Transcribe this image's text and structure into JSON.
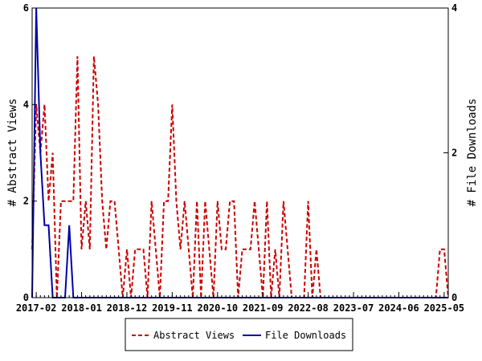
{
  "chart_data": {
    "type": "line",
    "xlabel": "",
    "ylabel_left": "# Abstract Views",
    "ylabel_right": "# File Downloads",
    "x_ticks": [
      "2017-02",
      "2018-01",
      "2018-12",
      "2019-11",
      "2020-10",
      "2021-09",
      "2022-08",
      "2023-07",
      "2024-06",
      "2025-05"
    ],
    "y_left_ticks": [
      "0",
      "2",
      "4",
      "6"
    ],
    "y_right_ticks": [
      "0",
      "2",
      "4"
    ],
    "ylim_left": [
      0,
      6
    ],
    "ylim_right": [
      0,
      4
    ],
    "xlim_months": [
      "2017-01",
      "2025-06"
    ],
    "legend_placement": "bottom",
    "series": [
      {
        "name": "Abstract Views",
        "axis": "left",
        "color": "#cc0000",
        "style": "dashed",
        "x": [
          "2017-01",
          "2017-02",
          "2017-03",
          "2017-04",
          "2017-05",
          "2017-06",
          "2017-07",
          "2017-08",
          "2017-09",
          "2017-10",
          "2017-11",
          "2017-12",
          "2018-01",
          "2018-02",
          "2018-03",
          "2018-04",
          "2018-05",
          "2018-06",
          "2018-07",
          "2018-08",
          "2018-09",
          "2018-10",
          "2018-11",
          "2018-12",
          "2019-01",
          "2019-02",
          "2019-03",
          "2019-04",
          "2019-05",
          "2019-06",
          "2019-07",
          "2019-08",
          "2019-09",
          "2019-10",
          "2019-11",
          "2019-12",
          "2020-01",
          "2020-02",
          "2020-03",
          "2020-04",
          "2020-05",
          "2020-06",
          "2020-07",
          "2020-08",
          "2020-09",
          "2020-10",
          "2020-11",
          "2020-12",
          "2021-01",
          "2021-02",
          "2021-03",
          "2021-04",
          "2021-05",
          "2021-06",
          "2021-07",
          "2021-08",
          "2021-09",
          "2021-10",
          "2021-11",
          "2021-12",
          "2022-01",
          "2022-02",
          "2022-03",
          "2022-04",
          "2022-05",
          "2022-06",
          "2022-07",
          "2022-08",
          "2022-09",
          "2022-10",
          "2022-11",
          "2022-12",
          "2023-01",
          "2025-01",
          "2025-02",
          "2025-03",
          "2025-04",
          "2025-05",
          "2025-06"
        ],
        "values": [
          1,
          4,
          3,
          4,
          2,
          3,
          0,
          2,
          2,
          2,
          2,
          5,
          1,
          2,
          1,
          5,
          4,
          2,
          1,
          2,
          2,
          1,
          0,
          1,
          0,
          1,
          1,
          1,
          0,
          2,
          1,
          0,
          2,
          2,
          4,
          2,
          1,
          2,
          1,
          0,
          2,
          0,
          2,
          1,
          0,
          2,
          1,
          1,
          2,
          2,
          0,
          1,
          1,
          1,
          2,
          1,
          0,
          2,
          0,
          1,
          0,
          2,
          1,
          0,
          0,
          0,
          0,
          2,
          0,
          1,
          0,
          0,
          0,
          0,
          0,
          0,
          1,
          1,
          0
        ]
      },
      {
        "name": "File Downloads",
        "axis": "right",
        "color": "#0000aa",
        "style": "solid",
        "x": [
          "2017-01",
          "2017-02",
          "2017-03",
          "2017-04",
          "2017-05",
          "2017-06",
          "2017-07",
          "2017-08",
          "2017-09",
          "2017-10",
          "2017-11",
          "2017-12",
          "2025-06"
        ],
        "values": [
          0,
          4,
          2,
          1,
          1,
          0,
          0,
          0,
          0,
          1,
          0,
          0,
          0
        ]
      }
    ]
  }
}
